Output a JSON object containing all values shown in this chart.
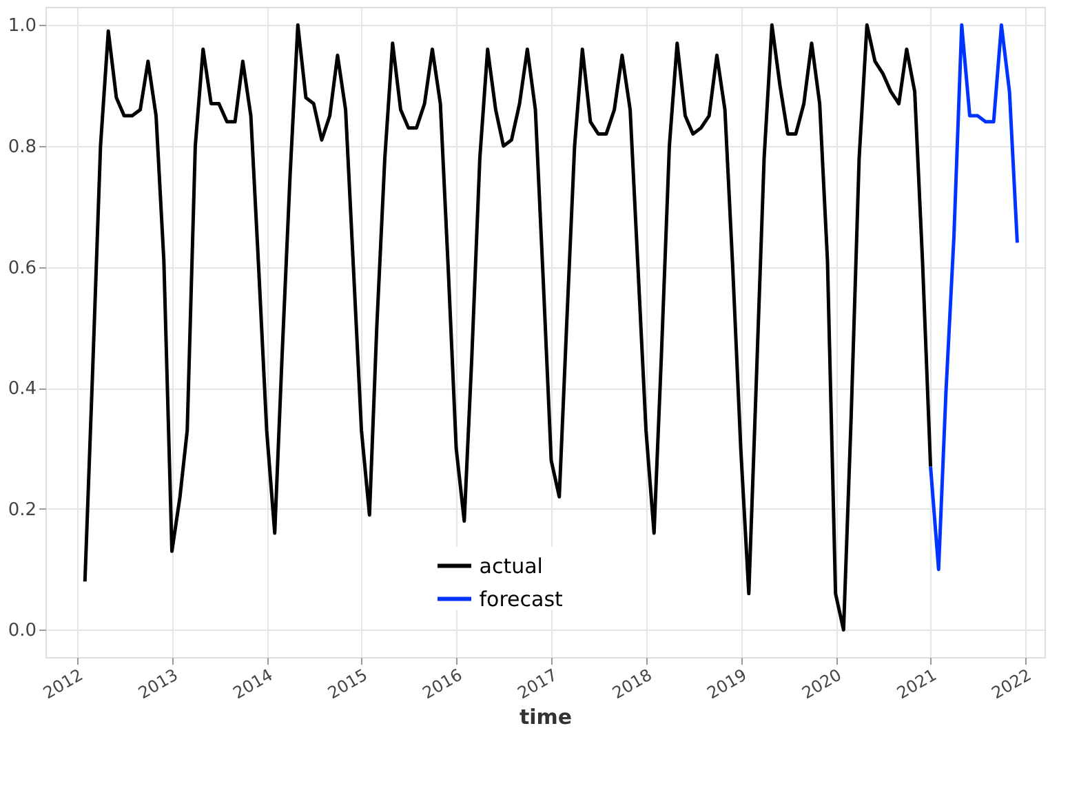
{
  "chart_data": {
    "type": "line",
    "xlabel": "time",
    "legend": "bottom",
    "grid": true,
    "line_style": "solid",
    "marker": "none",
    "xlim": [
      "2011-09-01",
      "2022-03-15"
    ],
    "xticks": [
      "2012",
      "2013",
      "2014",
      "2015",
      "2016",
      "2017",
      "2018",
      "2019",
      "2020",
      "2021",
      "2022"
    ],
    "ylim": [
      -0.045,
      1.03
    ],
    "yticks": [
      {
        "value": 0,
        "label": "0.0"
      },
      0.2,
      0.4,
      0.6,
      0.8,
      {
        "value": 1,
        "label": "1.0"
      }
    ],
    "series": [
      {
        "name": "actual",
        "color": "#000000",
        "x": [
          "2012-01-31",
          "2012-02-29",
          "2012-03-31",
          "2012-04-30",
          "2012-05-31",
          "2012-06-30",
          "2012-07-31",
          "2012-08-31",
          "2012-09-30",
          "2012-10-31",
          "2012-11-30",
          "2012-12-31",
          "2013-01-31",
          "2013-02-28",
          "2013-03-31",
          "2013-04-30",
          "2013-05-31",
          "2013-06-30",
          "2013-07-31",
          "2013-08-31",
          "2013-09-30",
          "2013-10-31",
          "2013-11-30",
          "2013-12-31",
          "2014-01-31",
          "2014-02-28",
          "2014-03-31",
          "2014-04-30",
          "2014-05-31",
          "2014-06-30",
          "2014-07-31",
          "2014-08-31",
          "2014-09-30",
          "2014-10-31",
          "2014-11-30",
          "2014-12-31",
          "2015-01-31",
          "2015-02-28",
          "2015-03-31",
          "2015-04-30",
          "2015-05-31",
          "2015-06-30",
          "2015-07-31",
          "2015-08-31",
          "2015-09-30",
          "2015-10-31",
          "2015-11-30",
          "2015-12-31",
          "2016-01-31",
          "2016-02-29",
          "2016-03-31",
          "2016-04-30",
          "2016-05-31",
          "2016-06-30",
          "2016-07-31",
          "2016-08-31",
          "2016-09-30",
          "2016-10-31",
          "2016-11-30",
          "2016-12-31",
          "2017-01-31",
          "2017-02-28",
          "2017-03-31",
          "2017-04-30",
          "2017-05-31",
          "2017-06-30",
          "2017-07-31",
          "2017-08-31",
          "2017-09-30",
          "2017-10-31",
          "2017-11-30",
          "2017-12-31",
          "2018-01-31",
          "2018-02-28",
          "2018-03-31",
          "2018-04-30",
          "2018-05-31",
          "2018-06-30",
          "2018-07-31",
          "2018-08-31",
          "2018-09-30",
          "2018-10-31",
          "2018-11-30",
          "2018-12-31",
          "2019-01-31",
          "2019-02-28",
          "2019-03-31",
          "2019-04-30",
          "2019-05-31",
          "2019-06-30",
          "2019-07-31",
          "2019-08-31",
          "2019-09-30",
          "2019-10-31",
          "2019-11-30",
          "2019-12-31",
          "2020-01-31",
          "2020-02-29",
          "2020-03-31",
          "2020-04-30",
          "2020-05-31",
          "2020-06-30",
          "2020-07-31",
          "2020-08-31",
          "2020-09-30",
          "2020-10-31",
          "2020-11-30",
          "2020-12-31"
        ],
        "values": [
          0.08,
          0.42,
          0.8,
          0.99,
          0.88,
          0.85,
          0.85,
          0.86,
          0.94,
          0.85,
          0.61,
          0.13,
          0.22,
          0.33,
          0.8,
          0.96,
          0.87,
          0.87,
          0.84,
          0.84,
          0.94,
          0.85,
          0.6,
          0.33,
          0.16,
          0.45,
          0.75,
          1.0,
          0.88,
          0.87,
          0.81,
          0.85,
          0.95,
          0.86,
          0.6,
          0.33,
          0.19,
          0.5,
          0.78,
          0.97,
          0.86,
          0.83,
          0.83,
          0.87,
          0.96,
          0.87,
          0.6,
          0.3,
          0.18,
          0.45,
          0.78,
          0.96,
          0.86,
          0.8,
          0.81,
          0.87,
          0.96,
          0.86,
          0.58,
          0.28,
          0.22,
          0.5,
          0.8,
          0.96,
          0.84,
          0.82,
          0.82,
          0.86,
          0.95,
          0.86,
          0.6,
          0.33,
          0.16,
          0.45,
          0.8,
          0.97,
          0.85,
          0.82,
          0.83,
          0.85,
          0.95,
          0.86,
          0.6,
          0.3,
          0.06,
          0.4,
          0.78,
          1.0,
          0.9,
          0.82,
          0.82,
          0.87,
          0.97,
          0.87,
          0.61,
          0.06,
          0.0,
          0.35,
          0.78,
          1.0,
          0.94,
          0.92,
          0.89,
          0.87,
          0.96,
          0.89,
          0.61,
          0.27
        ]
      },
      {
        "name": "forecast",
        "color": "#0033ff",
        "x": [
          "2020-12-31",
          "2021-01-31",
          "2021-02-28",
          "2021-03-31",
          "2021-04-30",
          "2021-05-31",
          "2021-06-30",
          "2021-07-31",
          "2021-08-31",
          "2021-09-30",
          "2021-10-31",
          "2021-11-30"
        ],
        "values": [
          0.27,
          0.1,
          0.39,
          0.65,
          1.0,
          0.85,
          0.85,
          0.84,
          0.84,
          1.0,
          0.89,
          0.64
        ]
      }
    ]
  }
}
